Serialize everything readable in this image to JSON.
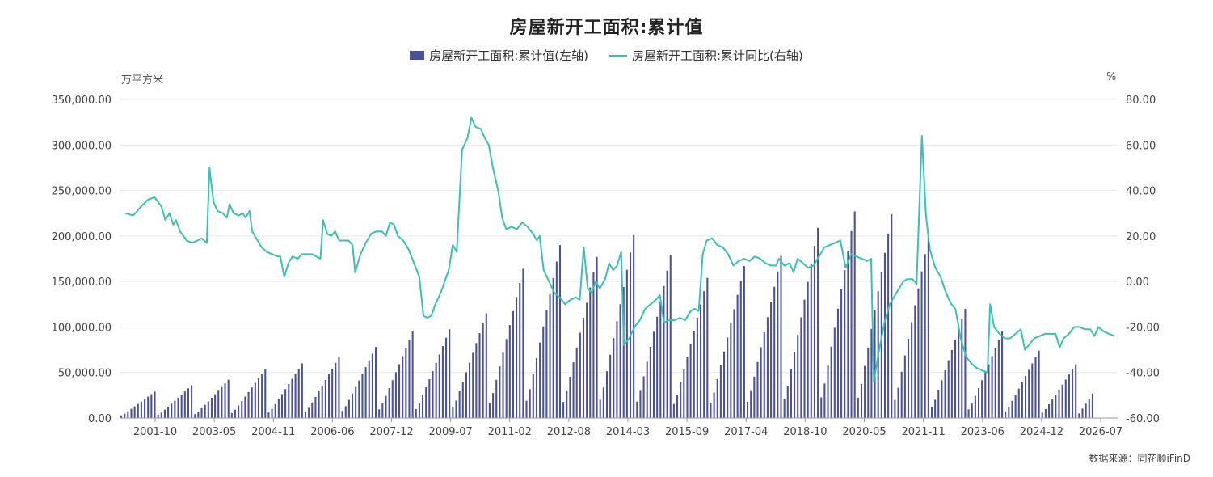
{
  "chart_data": {
    "type": "bar",
    "title": "房屋新开工面积:累计值",
    "left_unit": "万平方米",
    "right_unit": "%",
    "left_ylim": [
      0,
      350000
    ],
    "right_ylim": [
      -60,
      80
    ],
    "left_ticks": [
      "0.00",
      "50,000.00",
      "100,000.00",
      "150,000.00",
      "200,000.00",
      "250,000.00",
      "300,000.00",
      "350,000.00"
    ],
    "right_ticks": [
      "-60.00",
      "-40.00",
      "-20.00",
      "0.00",
      "20.00",
      "40.00",
      "60.00",
      "80.00"
    ],
    "x_tick_labels": [
      "2001-10",
      "2003-05",
      "2004-11",
      "2006-06",
      "2007-12",
      "2009-07",
      "2011-02",
      "2012-08",
      "2014-03",
      "2015-09",
      "2017-04",
      "2018-10",
      "2020-05",
      "2021-11",
      "2023-06",
      "2024-12",
      "2026-07"
    ],
    "source": "数据来源：同花顺iFinD",
    "legend_placement": "top-center",
    "grid": "horizontal",
    "series": [
      {
        "name": "房屋新开工面积:累计值(左轴)",
        "type": "bar",
        "color": "#4B5196",
        "axis": "left",
        "annual_peaks": [
          {
            "year": 2000,
            "peak": 29000
          },
          {
            "year": 2001,
            "peak": 36000
          },
          {
            "year": 2002,
            "peak": 42000
          },
          {
            "year": 2003,
            "peak": 54000
          },
          {
            "year": 2004,
            "peak": 60000
          },
          {
            "year": 2005,
            "peak": 67000
          },
          {
            "year": 2006,
            "peak": 78000
          },
          {
            "year": 2007,
            "peak": 95000
          },
          {
            "year": 2008,
            "peak": 97500
          },
          {
            "year": 2009,
            "peak": 115000
          },
          {
            "year": 2010,
            "peak": 164000
          },
          {
            "year": 2011,
            "peak": 190000
          },
          {
            "year": 2012,
            "peak": 177000
          },
          {
            "year": 2013,
            "peak": 201000
          },
          {
            "year": 2014,
            "peak": 179000
          },
          {
            "year": 2015,
            "peak": 154000
          },
          {
            "year": 2016,
            "peak": 167000
          },
          {
            "year": 2017,
            "peak": 178000
          },
          {
            "year": 2018,
            "peak": 209000
          },
          {
            "year": 2019,
            "peak": 227000
          },
          {
            "year": 2020,
            "peak": 224000
          },
          {
            "year": 2021,
            "peak": 199000
          },
          {
            "year": 2022,
            "peak": 120000
          },
          {
            "year": 2023,
            "peak": 95000
          },
          {
            "year": 2024,
            "peak": 74000
          },
          {
            "year": 2025,
            "peak": 59000
          },
          {
            "year": 2026,
            "peak": 27000
          }
        ]
      },
      {
        "name": "房屋新开工面积:累计同比(右轴)",
        "type": "line",
        "color": "#3CBFB4",
        "axis": "right",
        "points": [
          [
            2000.1,
            30
          ],
          [
            2000.4,
            29
          ],
          [
            2000.7,
            33
          ],
          [
            2000.95,
            36
          ],
          [
            2001.2,
            37
          ],
          [
            2001.45,
            33
          ],
          [
            2001.6,
            27
          ],
          [
            2001.75,
            30
          ],
          [
            2001.9,
            25
          ],
          [
            2002.0,
            27
          ],
          [
            2002.15,
            22
          ],
          [
            2002.4,
            18
          ],
          [
            2002.6,
            17
          ],
          [
            2002.8,
            18
          ],
          [
            2002.95,
            19
          ],
          [
            2003.15,
            17
          ],
          [
            2003.25,
            50
          ],
          [
            2003.4,
            35
          ],
          [
            2003.55,
            31
          ],
          [
            2003.75,
            30
          ],
          [
            2003.9,
            28
          ],
          [
            2004.0,
            34
          ],
          [
            2004.15,
            30
          ],
          [
            2004.35,
            29
          ],
          [
            2004.5,
            30
          ],
          [
            2004.6,
            28
          ],
          [
            2004.75,
            31
          ],
          [
            2004.85,
            22
          ],
          [
            2005.0,
            19
          ],
          [
            2005.2,
            15
          ],
          [
            2005.4,
            13
          ],
          [
            2005.6,
            12
          ],
          [
            2005.8,
            11
          ],
          [
            2005.9,
            11
          ],
          [
            2006.05,
            2
          ],
          [
            2006.2,
            8
          ],
          [
            2006.35,
            11
          ],
          [
            2006.55,
            10
          ],
          [
            2006.7,
            12
          ],
          [
            2006.9,
            12
          ],
          [
            2007.1,
            12
          ],
          [
            2007.25,
            11
          ],
          [
            2007.4,
            10
          ],
          [
            2007.5,
            27
          ],
          [
            2007.65,
            21
          ],
          [
            2007.8,
            20
          ],
          [
            2007.95,
            22
          ],
          [
            2008.1,
            18
          ],
          [
            2008.3,
            18
          ],
          [
            2008.45,
            18
          ],
          [
            2008.6,
            16
          ],
          [
            2008.7,
            4
          ],
          [
            2008.9,
            12
          ],
          [
            2009.1,
            17
          ],
          [
            2009.3,
            21
          ],
          [
            2009.5,
            22
          ],
          [
            2009.7,
            22
          ],
          [
            2009.85,
            20
          ],
          [
            2010.0,
            26
          ],
          [
            2010.15,
            25
          ],
          [
            2010.3,
            20
          ],
          [
            2010.5,
            18
          ],
          [
            2010.7,
            14
          ],
          [
            2010.9,
            8
          ],
          [
            2011.1,
            2
          ],
          [
            2011.25,
            -15
          ],
          [
            2011.4,
            -16
          ],
          [
            2011.55,
            -15
          ],
          [
            2011.7,
            -10
          ],
          [
            2011.9,
            -5
          ],
          [
            2012.05,
            0
          ],
          [
            2012.2,
            5
          ],
          [
            2012.35,
            16
          ],
          [
            2012.5,
            13
          ],
          [
            2012.7,
            58
          ],
          [
            2012.9,
            63
          ],
          [
            2013.05,
            72
          ],
          [
            2013.2,
            68
          ],
          [
            2013.4,
            67
          ],
          [
            2013.55,
            63
          ],
          [
            2013.7,
            60
          ],
          [
            2013.85,
            50
          ],
          [
            2014.05,
            40
          ],
          [
            2014.2,
            28
          ],
          [
            2014.35,
            23
          ],
          [
            2014.55,
            24
          ],
          [
            2014.75,
            23
          ],
          [
            2014.95,
            26
          ],
          [
            2015.15,
            24
          ],
          [
            2015.35,
            21
          ],
          [
            2015.5,
            18
          ],
          [
            2015.6,
            20
          ],
          [
            2015.75,
            5
          ],
          [
            2015.95,
            0
          ],
          [
            2016.15,
            -5
          ],
          [
            2016.35,
            -7
          ],
          [
            2016.55,
            -10
          ],
          [
            2016.75,
            -8
          ],
          [
            2016.95,
            -7
          ],
          [
            2017.1,
            -8
          ],
          [
            2017.25,
            15
          ],
          [
            2017.4,
            -3
          ],
          [
            2017.55,
            -5
          ],
          [
            2017.7,
            0
          ],
          [
            2017.85,
            -3
          ],
          [
            2018.05,
            1
          ],
          [
            2018.2,
            8
          ],
          [
            2018.35,
            5
          ],
          [
            2018.5,
            7
          ],
          [
            2018.65,
            13
          ],
          [
            2018.75,
            -28
          ],
          [
            2018.95,
            -25
          ],
          [
            2019.15,
            -20
          ],
          [
            2019.35,
            -17
          ],
          [
            2019.55,
            -12
          ],
          [
            2019.75,
            -10
          ],
          [
            2019.95,
            -8
          ],
          [
            2020.1,
            -6
          ],
          [
            2020.25,
            -18
          ],
          [
            2020.45,
            -17
          ],
          [
            2020.65,
            -17
          ],
          [
            2020.85,
            -16
          ],
          [
            2021.05,
            -17
          ],
          [
            2021.25,
            -13
          ],
          [
            2021.4,
            -12
          ],
          [
            2021.55,
            -13
          ],
          [
            2021.7,
            12
          ],
          [
            2021.85,
            18
          ],
          [
            2022.05,
            19
          ],
          [
            2022.25,
            16
          ],
          [
            2022.45,
            15
          ],
          [
            2022.65,
            12
          ],
          [
            2022.85,
            7
          ],
          [
            2023.05,
            9
          ],
          [
            2023.25,
            10
          ],
          [
            2023.45,
            9
          ],
          [
            2023.65,
            11
          ],
          [
            2023.85,
            10
          ],
          [
            2024.05,
            8
          ],
          [
            2024.25,
            7
          ],
          [
            2024.45,
            7
          ],
          [
            2024.55,
            10
          ],
          [
            2024.75,
            7
          ],
          [
            2024.95,
            8
          ],
          [
            2025.1,
            4
          ],
          [
            2025.25,
            10
          ],
          [
            2025.45,
            8
          ],
          [
            2025.65,
            6
          ],
          [
            2025.85,
            7
          ],
          [
            2026.05,
            11
          ],
          [
            2026.25,
            15
          ],
          [
            2026.45,
            16
          ],
          [
            2026.65,
            17
          ],
          [
            2026.85,
            18
          ],
          [
            2027.05,
            6
          ],
          [
            2027.25,
            12
          ],
          [
            2027.45,
            11
          ],
          [
            2027.65,
            10
          ],
          [
            2027.85,
            9
          ],
          [
            2028.0,
            10
          ],
          [
            2028.1,
            -44
          ],
          [
            2028.3,
            -30
          ],
          [
            2028.5,
            -18
          ],
          [
            2028.7,
            -10
          ],
          [
            2028.9,
            -6
          ],
          [
            2029.05,
            -3
          ],
          [
            2029.2,
            0
          ],
          [
            2029.35,
            1
          ],
          [
            2029.55,
            1
          ],
          [
            2029.7,
            -1
          ],
          [
            2029.9,
            64
          ],
          [
            2030.05,
            29
          ],
          [
            2030.2,
            14
          ],
          [
            2030.4,
            6
          ],
          [
            2030.6,
            2
          ],
          [
            2030.8,
            -5
          ],
          [
            2031.0,
            -10
          ],
          [
            2031.15,
            -12
          ],
          [
            2031.35,
            -25
          ],
          [
            2031.55,
            -33
          ],
          [
            2031.75,
            -36
          ],
          [
            2031.95,
            -38
          ],
          [
            2032.15,
            -39
          ],
          [
            2032.35,
            -40
          ],
          [
            2032.45,
            -10
          ],
          [
            2032.6,
            -20
          ],
          [
            2032.8,
            -23
          ],
          [
            2033.0,
            -25
          ],
          [
            2033.2,
            -25
          ],
          [
            2033.4,
            -23
          ],
          [
            2033.6,
            -21
          ],
          [
            2033.75,
            -30
          ],
          [
            2033.9,
            -28
          ],
          [
            2034.1,
            -25
          ],
          [
            2034.3,
            -24
          ],
          [
            2034.5,
            -23
          ],
          [
            2034.7,
            -23
          ],
          [
            2034.9,
            -23
          ],
          [
            2035.05,
            -29
          ],
          [
            2035.2,
            -25
          ],
          [
            2035.4,
            -23
          ],
          [
            2035.6,
            -20
          ],
          [
            2035.8,
            -20
          ],
          [
            2036.0,
            -21
          ],
          [
            2036.2,
            -21
          ],
          [
            2036.35,
            -24
          ],
          [
            2036.5,
            -20
          ],
          [
            2036.7,
            -22
          ],
          [
            2036.9,
            -23
          ],
          [
            2037.1,
            -24
          ]
        ]
      }
    ]
  }
}
